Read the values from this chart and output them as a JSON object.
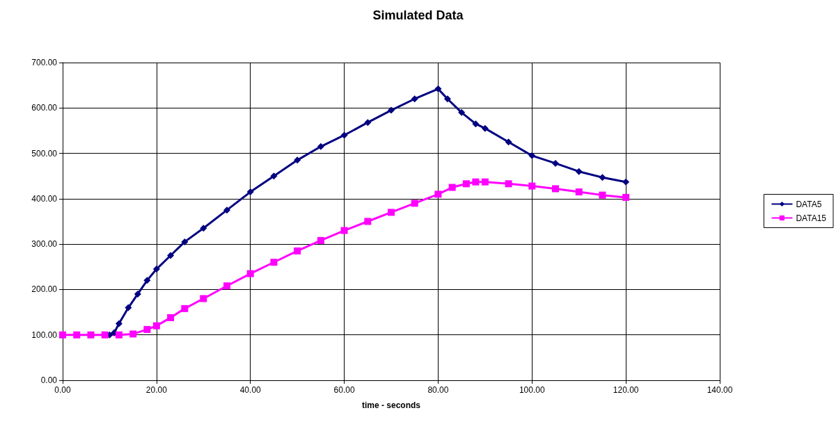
{
  "chart_data": {
    "type": "line",
    "title": "Simulated Data",
    "xlabel": "time - seconds",
    "xlim": [
      0,
      140
    ],
    "xticks": [
      {
        "value": 0,
        "label": "0.00"
      },
      {
        "value": 20,
        "label": "20.00"
      },
      {
        "value": 40,
        "label": "40.00"
      },
      {
        "value": 60,
        "label": "60.00"
      },
      {
        "value": 80,
        "label": "80.00"
      },
      {
        "value": 100,
        "label": "100.00"
      },
      {
        "value": 120,
        "label": "120.00"
      },
      {
        "value": 140,
        "label": "140.00"
      }
    ],
    "ylim": [
      0,
      700
    ],
    "yticks": [
      {
        "value": 0,
        "label": "0.00"
      },
      {
        "value": 100,
        "label": "100.00"
      },
      {
        "value": 200,
        "label": "200.00"
      },
      {
        "value": 300,
        "label": "300.00"
      },
      {
        "value": 400,
        "label": "400.00"
      },
      {
        "value": 500,
        "label": "500.00"
      },
      {
        "value": 600,
        "label": "600.00"
      },
      {
        "value": 700,
        "label": "700.00"
      }
    ],
    "grid": true,
    "legend": "right",
    "line_style": "solid",
    "series": [
      {
        "name": "DATA5",
        "color": "#000080",
        "marker": "diamond",
        "x": [
          10,
          11,
          12,
          14,
          16,
          18,
          20,
          23,
          26,
          30,
          35,
          40,
          45,
          50,
          55,
          60,
          65,
          70,
          75,
          80,
          82,
          85,
          88,
          90,
          95,
          100,
          105,
          110,
          115,
          120
        ],
        "values": [
          100,
          105,
          125,
          160,
          190,
          220,
          245,
          275,
          305,
          335,
          375,
          415,
          450,
          485,
          515,
          540,
          568,
          595,
          620,
          642,
          620,
          590,
          565,
          555,
          525,
          495,
          478,
          460,
          447,
          437
        ]
      },
      {
        "name": "DATA15",
        "color": "#ff00ff",
        "marker": "square",
        "x": [
          0,
          3,
          6,
          9,
          12,
          15,
          18,
          20,
          23,
          26,
          30,
          35,
          40,
          45,
          50,
          55,
          60,
          65,
          70,
          75,
          80,
          83,
          86,
          88,
          90,
          95,
          100,
          105,
          110,
          115,
          120
        ],
        "values": [
          100,
          100,
          100,
          100,
          100,
          102,
          112,
          120,
          138,
          158,
          180,
          208,
          235,
          260,
          285,
          308,
          330,
          350,
          370,
          390,
          410,
          425,
          433,
          437,
          437,
          433,
          428,
          422,
          415,
          408,
          403
        ]
      }
    ]
  }
}
